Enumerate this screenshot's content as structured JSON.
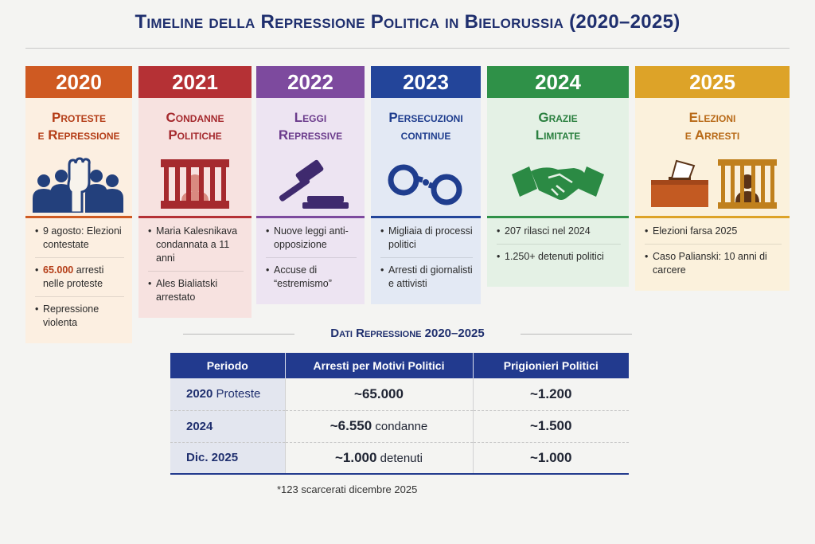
{
  "title": "Timeline della Repressione Politica in Bielorussia (2020–2025)",
  "columns": [
    {
      "year": "2020",
      "subtitle_1": "Proteste",
      "subtitle_2": "e Repressione",
      "icon": "protest-crowd-icon",
      "year_color": "#cf5a22",
      "text_color": "#b43d17",
      "bg": "#fcefe1",
      "bullets": [
        {
          "highlight": "",
          "text": "9 agosto: Elezioni contestate"
        },
        {
          "highlight": "65.000",
          "text": " arresti nelle proteste"
        },
        {
          "highlight": "",
          "text": "Repressione violenta"
        }
      ]
    },
    {
      "year": "2021",
      "subtitle_1": "Condanne",
      "subtitle_2": "Politiche",
      "icon": "prison-bars-icon",
      "year_color": "#b53135",
      "text_color": "#a52a2e",
      "bg": "#f7e2e0",
      "bullets": [
        {
          "highlight": "",
          "text": "Maria Kalesnikava condannata a 11 anni"
        },
        {
          "highlight": "",
          "text": "Ales Bialiatski arrestato"
        }
      ]
    },
    {
      "year": "2022",
      "subtitle_1": "Leggi",
      "subtitle_2": "Repressive",
      "icon": "gavel-icon",
      "year_color": "#7d4a9e",
      "text_color": "#6b3b8c",
      "bg": "#ede4f2",
      "bullets": [
        {
          "highlight": "",
          "text": "Nuove leggi anti-opposizione"
        },
        {
          "highlight": "",
          "text": "Accuse di “estremismo”"
        }
      ]
    },
    {
      "year": "2023",
      "subtitle_1": "Persecuzioni",
      "subtitle_2": "continue",
      "icon": "handcuffs-icon",
      "year_color": "#23459a",
      "text_color": "#1f3d8e",
      "bg": "#e3e9f4",
      "bullets": [
        {
          "highlight": "",
          "text": "Migliaia di processi politici"
        },
        {
          "highlight": "",
          "text": "Arresti di giornalisti e attivisti"
        }
      ]
    },
    {
      "year": "2024",
      "subtitle_1": "Grazie",
      "subtitle_2": "Limitate",
      "icon": "handshake-icon",
      "year_color": "#2f9148",
      "text_color": "#2b8040",
      "bg": "#e4f1e5",
      "bullets": [
        {
          "highlight": "",
          "text": "207 rilasci nel 2024"
        },
        {
          "highlight": "",
          "text": "1.250+ detenuti politici"
        }
      ]
    },
    {
      "year": "2025",
      "subtitle_1": "Elezioni",
      "subtitle_2": "e Arresti",
      "icon": "ballot-box-prison-icon",
      "year_color": "#dda328",
      "text_color": "#b86a18",
      "bg": "#fbf1dc",
      "bullets": [
        {
          "highlight": "",
          "text": "Elezioni farsa 2025"
        },
        {
          "highlight": "",
          "text": "Caso Palianski: 10 anni di carcere"
        }
      ]
    }
  ],
  "table": {
    "section_title": "Dati Repressione 2020–2025",
    "headers": [
      "Periodo",
      "Arresti per Motivi Politici",
      "Prigionieri Politici"
    ],
    "rows": [
      {
        "period_bold": "2020",
        "period_light": " Proteste",
        "arrests_num": "~65.000",
        "arrests_suffix": "",
        "prisoners": "~1.200"
      },
      {
        "period_bold": "2024",
        "period_light": "",
        "arrests_num": "~6.550",
        "arrests_suffix": " condanne",
        "prisoners": "~1.500"
      },
      {
        "period_bold": "Dic. 2025",
        "period_light": "",
        "arrests_num": "~1.000",
        "arrests_suffix": " detenuti",
        "prisoners": "~1.000"
      }
    ],
    "footnote": "*123 scarcerati dicembre 2025"
  }
}
